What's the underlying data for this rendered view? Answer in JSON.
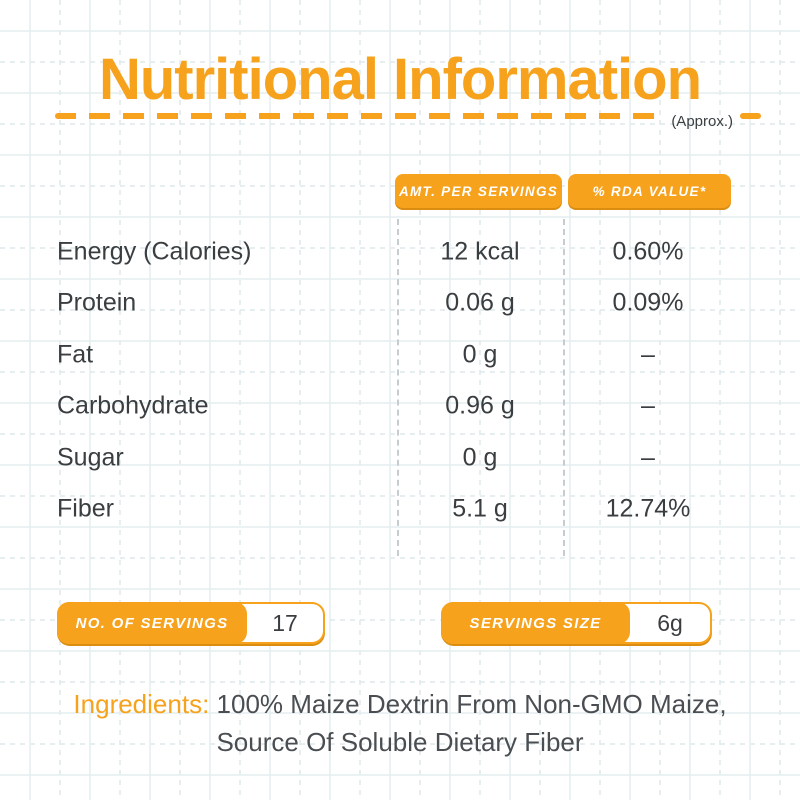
{
  "title": "Nutritional Information",
  "approx_note": "(Approx.)",
  "table": {
    "col_headers": [
      "AMT. PER SERVINGS",
      "% RDA VALUE*"
    ],
    "rows": [
      {
        "label": "Energy (Calories)",
        "amount": "12 kcal",
        "rda": "0.60%"
      },
      {
        "label": "Protein",
        "amount": "0.06 g",
        "rda": "0.09%"
      },
      {
        "label": "Fat",
        "amount": "0 g",
        "rda": "–"
      },
      {
        "label": "Carbohydrate",
        "amount": "0.96 g",
        "rda": "–"
      },
      {
        "label": "Sugar",
        "amount": "0 g",
        "rda": "–"
      },
      {
        "label": "Fiber",
        "amount": "5.1 g",
        "rda": "12.74%"
      }
    ]
  },
  "badges": [
    {
      "label": "NO. OF SERVINGS",
      "value": "17"
    },
    {
      "label": "SERVINGS SIZE",
      "value": "6g"
    }
  ],
  "ingredients": {
    "label": "Ingredients:",
    "line1": "100% Maize Dextrin From Non-GMO Maize,",
    "line2": "Source Of Soluble Dietary Fiber"
  },
  "colors": {
    "accent_orange": "#F6A21C",
    "accent_orange_dark": "#DA8D10",
    "text_dark": "#3A3E41",
    "grid_solid": "#E4EDEF",
    "grid_dashed": "#DFE9EC"
  }
}
